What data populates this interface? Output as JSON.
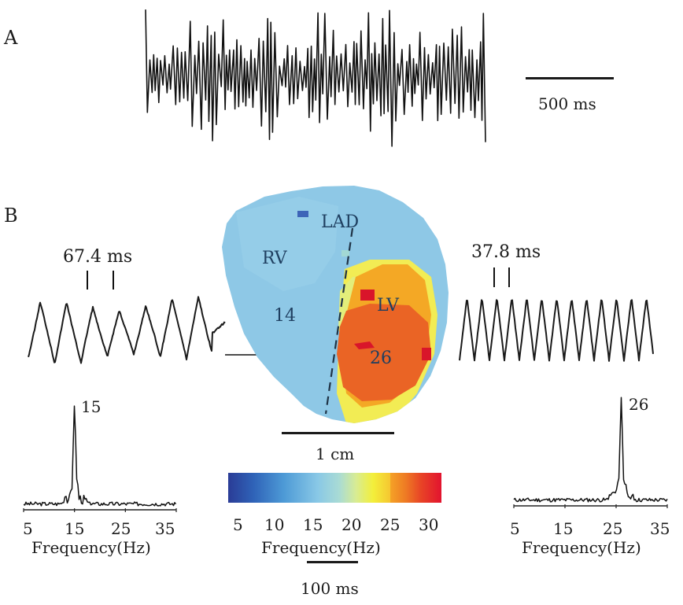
{
  "panel_a": {
    "letter": "A",
    "scale_label": "500 ms"
  },
  "panel_b": {
    "letter": "B",
    "left_trace": {
      "interval_label": "67.4 ms"
    },
    "right_trace": {
      "interval_label": "37.8 ms"
    },
    "map": {
      "labels": {
        "lad": "LAD",
        "rv": "RV",
        "lv": "LV",
        "rv_value": "14",
        "lv_value": "26"
      },
      "scale_label": "1 cm"
    },
    "left_spectrum": {
      "peak_label": "15",
      "ticks": [
        "5",
        "15",
        "25",
        "35"
      ],
      "xlabel": "Frequency(Hz)"
    },
    "right_spectrum": {
      "peak_label": "26",
      "ticks": [
        "5",
        "15",
        "25",
        "35"
      ],
      "xlabel": "Frequency(Hz)"
    },
    "colorbar": {
      "colors": [
        "#2a3c96",
        "#2f63b8",
        "#4d9ad6",
        "#89c8e6",
        "#a9dbd5",
        "#d8ec93",
        "#f3ef3a",
        "#f7b22c",
        "#ef6e23",
        "#e41b34"
      ],
      "ticks": [
        "5",
        "10",
        "15",
        "20",
        "25",
        "30"
      ],
      "xlabel": "Frequency(Hz)"
    },
    "time_scale_label": "100 ms"
  }
}
